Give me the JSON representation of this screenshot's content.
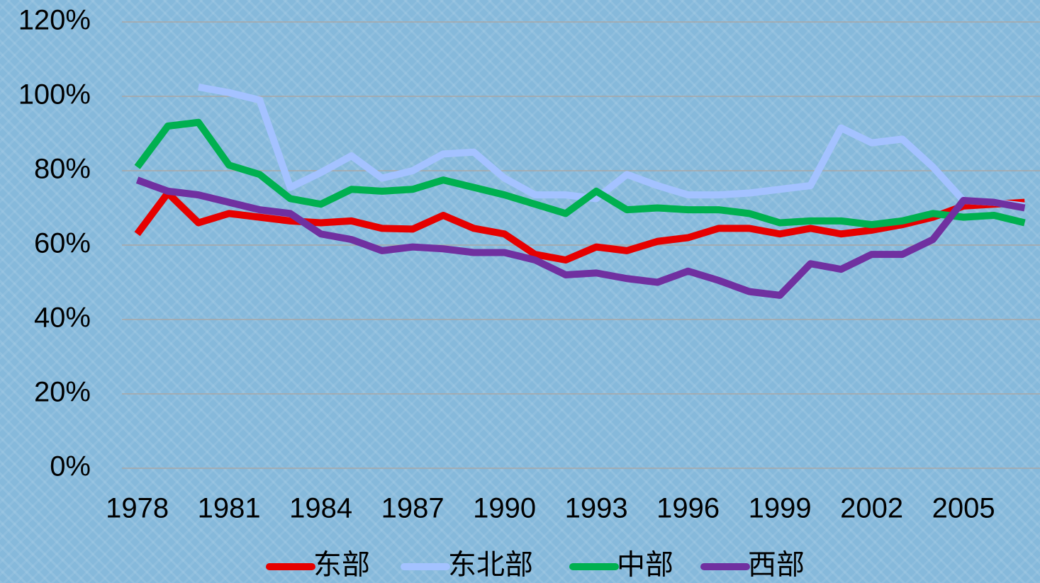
{
  "chart_data": {
    "type": "line",
    "x": [
      1978,
      1979,
      1980,
      1981,
      1982,
      1983,
      1984,
      1985,
      1986,
      1987,
      1988,
      1989,
      1990,
      1991,
      1992,
      1993,
      1994,
      1995,
      1996,
      1997,
      1998,
      1999,
      2000,
      2001,
      2002,
      2003,
      2004,
      2005,
      2006,
      2007
    ],
    "xlim": [
      1977.5,
      2007.5
    ],
    "xticks": [
      1978,
      1981,
      1984,
      1987,
      1990,
      1993,
      1996,
      1999,
      2002,
      2005
    ],
    "ylim": [
      0,
      120
    ],
    "yticks": [
      {
        "value": 0,
        "label": "0%"
      },
      {
        "value": 20,
        "label": "20%"
      },
      {
        "value": 40,
        "label": "40%"
      },
      {
        "value": 60,
        "label": "60%"
      },
      {
        "value": 80,
        "label": "80%"
      },
      {
        "value": 100,
        "label": "100%"
      },
      {
        "value": 120,
        "label": "120%"
      }
    ],
    "grid": true,
    "legend": "bottom",
    "series": [
      {
        "name": "东部",
        "color": "#e60000",
        "values": [
          63,
          74,
          66,
          68.5,
          67.5,
          66.5,
          66,
          66.5,
          64.5,
          64.3,
          68,
          64.5,
          63,
          57.5,
          56,
          59.5,
          58.5,
          61,
          62,
          64.5,
          64.5,
          63,
          64.5,
          63,
          64,
          65.5,
          67.5,
          70.5,
          71,
          71.5
        ]
      },
      {
        "name": "东北部",
        "color": "#a3c2ff",
        "values": [
          null,
          null,
          102.5,
          101,
          99,
          75.5,
          79.5,
          84,
          78,
          80,
          84.5,
          85,
          78,
          73.5,
          73.5,
          72.5,
          79,
          76,
          73.5,
          73.5,
          74,
          75,
          76,
          91.5,
          87.5,
          88.5,
          81,
          72,
          71.5,
          70.5
        ]
      },
      {
        "name": "中部",
        "color": "#00b050",
        "values": [
          81,
          92,
          93,
          81.5,
          79,
          72.5,
          71,
          75,
          74.5,
          75,
          77.5,
          75.5,
          73.5,
          71,
          68.5,
          74.5,
          69.5,
          70,
          69.5,
          69.5,
          68.5,
          66,
          66.5,
          66.5,
          65.5,
          66.5,
          68.5,
          67.5,
          68,
          66
        ]
      },
      {
        "name": "西部",
        "color": "#7030a0",
        "values": [
          77.5,
          74.5,
          73.5,
          71.5,
          69.5,
          68.5,
          63,
          61.5,
          58.5,
          59.5,
          59,
          58,
          58,
          56,
          52,
          52.5,
          51,
          50,
          53,
          50.5,
          47.5,
          46.5,
          55,
          53.5,
          57.5,
          57.5,
          61.5,
          72,
          71.5,
          70
        ]
      }
    ]
  }
}
